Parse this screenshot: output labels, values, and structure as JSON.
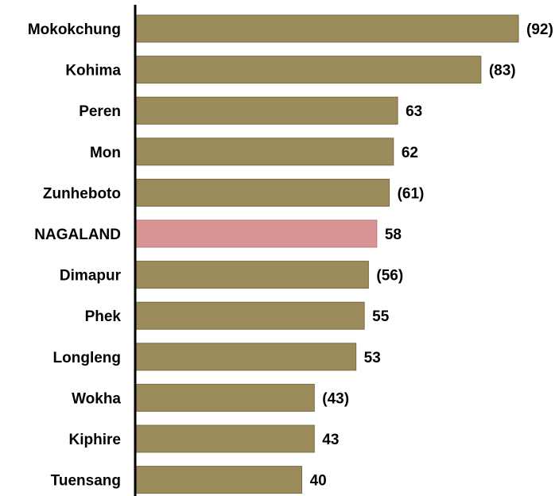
{
  "chart_data": {
    "type": "bar",
    "orientation": "horizontal",
    "title": "",
    "xlabel": "",
    "ylabel": "",
    "categories": [
      "Mokokchung",
      "Kohima",
      "Peren",
      "Mon",
      "Zunheboto",
      "NAGALAND",
      "Dimapur",
      "Phek",
      "Longleng",
      "Wokha",
      "Kiphire",
      "Tuensang"
    ],
    "values": [
      92,
      83,
      63,
      62,
      61,
      58,
      56,
      55,
      53,
      43,
      43,
      40
    ],
    "value_labels": [
      "(92)",
      "(83)",
      "63",
      "62",
      "(61)",
      "58",
      "(56)",
      "55",
      "53",
      "(43)",
      "43",
      "40"
    ],
    "highlight_index": 5,
    "xlim": [
      0,
      100
    ],
    "grid": false,
    "legend": "none",
    "colors": {
      "bar": "#9b8b5a",
      "bar_edge": "#7a6c42",
      "highlight": "#d99494",
      "highlight_edge": "#b87a7a",
      "axis": "#000000"
    }
  }
}
